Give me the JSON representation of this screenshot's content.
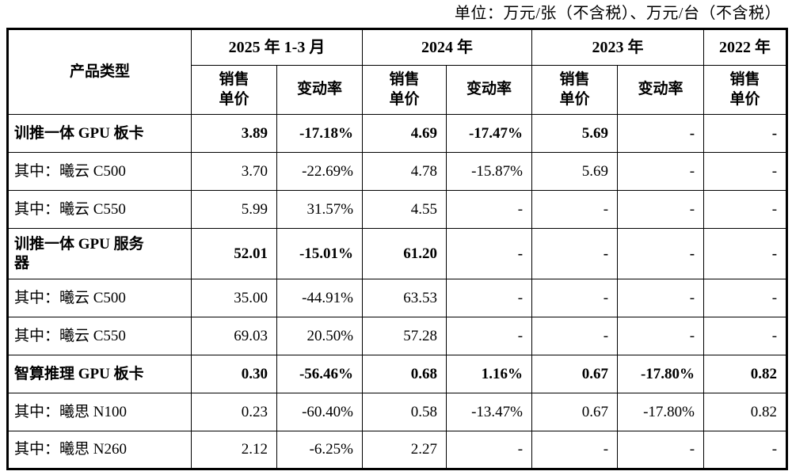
{
  "unit_note": "单位：万元/张（不含税）、万元/台（不含税）",
  "table": {
    "product_header": "产品类型",
    "sub_price": "销售单价",
    "sub_change": "变动率",
    "groups": [
      {
        "label": "2025 年 1-3 月",
        "sub": [
          "销售单价",
          "变动率"
        ]
      },
      {
        "label": "2024 年",
        "sub": [
          "销售单价",
          "变动率"
        ]
      },
      {
        "label": "2023 年",
        "sub": [
          "销售单价",
          "变动率"
        ]
      },
      {
        "label": "2022 年",
        "sub": [
          "销售单价"
        ]
      }
    ],
    "rows": [
      {
        "name": "训推一体 GPU 板卡",
        "bold": true,
        "tall": false,
        "values": [
          "3.89",
          "-17.18%",
          "4.69",
          "-17.47%",
          "5.69",
          "-",
          "-"
        ]
      },
      {
        "name": "其中：曦云 C500",
        "bold": false,
        "tall": false,
        "values": [
          "3.70",
          "-22.69%",
          "4.78",
          "-15.87%",
          "5.69",
          "-",
          "-"
        ]
      },
      {
        "name": "其中：曦云 C550",
        "bold": false,
        "tall": false,
        "values": [
          "5.99",
          "31.57%",
          "4.55",
          "-",
          "-",
          "-",
          "-"
        ]
      },
      {
        "name": "训推一体 GPU 服务\n器",
        "bold": true,
        "tall": true,
        "values": [
          "52.01",
          "-15.01%",
          "61.20",
          "-",
          "-",
          "-",
          "-"
        ]
      },
      {
        "name": "其中：曦云 C500",
        "bold": false,
        "tall": false,
        "values": [
          "35.00",
          "-44.91%",
          "63.53",
          "-",
          "-",
          "-",
          "-"
        ]
      },
      {
        "name": "其中：曦云 C550",
        "bold": false,
        "tall": false,
        "values": [
          "69.03",
          "20.50%",
          "57.28",
          "-",
          "-",
          "-",
          "-"
        ]
      },
      {
        "name": "智算推理 GPU 板卡",
        "bold": true,
        "tall": false,
        "values": [
          "0.30",
          "-56.46%",
          "0.68",
          "1.16%",
          "0.67",
          "-17.80%",
          "0.82"
        ]
      },
      {
        "name": "其中：曦思 N100",
        "bold": false,
        "tall": false,
        "values": [
          "0.23",
          "-60.40%",
          "0.58",
          "-13.47%",
          "0.67",
          "-17.80%",
          "0.82"
        ]
      },
      {
        "name": "其中：曦思 N260",
        "bold": false,
        "tall": false,
        "values": [
          "2.12",
          "-6.25%",
          "2.27",
          "-",
          "-",
          "-",
          "-"
        ]
      }
    ]
  }
}
